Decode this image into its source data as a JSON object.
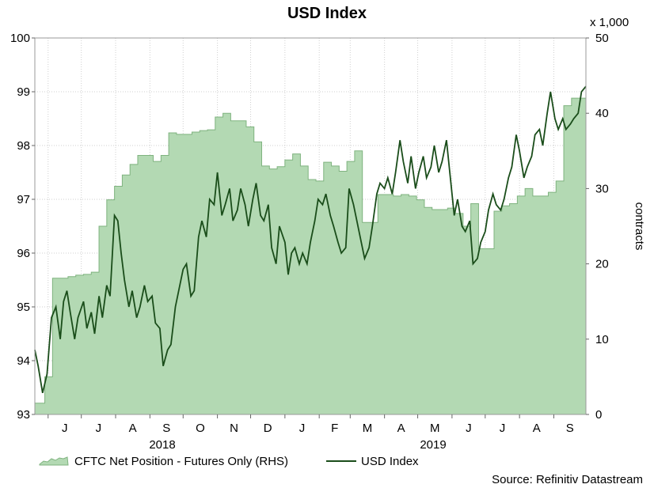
{
  "chart_data": {
    "type": "line",
    "title": "USD Index",
    "right_axis_multiplier": "x 1,000",
    "right_axis_label": "contracts",
    "source": "Source: Refinitiv Datastream",
    "x_start": "2018-05-20",
    "x_end": "2019-09-30",
    "month_labels": [
      "J",
      "J",
      "A",
      "S",
      "O",
      "N",
      "D",
      "J",
      "F",
      "M",
      "A",
      "M",
      "J",
      "J",
      "A",
      "S"
    ],
    "year_labels": [
      "2018",
      "2019"
    ],
    "y_left": {
      "min": 93,
      "max": 100,
      "ticks": [
        "93",
        "94",
        "95",
        "96",
        "97",
        "98",
        "99",
        "100"
      ]
    },
    "y_right": {
      "min": 0,
      "max": 50,
      "ticks": [
        "0",
        "10",
        "20",
        "30",
        "40",
        "50"
      ]
    },
    "grid": true,
    "legend_position": "bottom-left",
    "series": [
      {
        "name": "CFTC Net Position - Futures Only (RHS)",
        "type": "area",
        "axis": "right",
        "color": "#b3d9b3",
        "edge_color": "#7fb37f",
        "points": [
          [
            "2018-05-20",
            1.5
          ],
          [
            "2018-05-29",
            5.0
          ],
          [
            "2018-06-05",
            18.1
          ],
          [
            "2018-06-19",
            18.3
          ],
          [
            "2018-06-26",
            18.5
          ],
          [
            "2018-07-03",
            18.6
          ],
          [
            "2018-07-10",
            18.9
          ],
          [
            "2018-07-17",
            25.0
          ],
          [
            "2018-07-24",
            28.5
          ],
          [
            "2018-07-31",
            30.3
          ],
          [
            "2018-08-07",
            31.8
          ],
          [
            "2018-08-14",
            33.2
          ],
          [
            "2018-08-21",
            34.4
          ],
          [
            "2018-08-28",
            34.4
          ],
          [
            "2018-09-04",
            33.6
          ],
          [
            "2018-09-11",
            34.4
          ],
          [
            "2018-09-18",
            37.4
          ],
          [
            "2018-09-25",
            37.2
          ],
          [
            "2018-10-02",
            37.2
          ],
          [
            "2018-10-09",
            37.5
          ],
          [
            "2018-10-16",
            37.7
          ],
          [
            "2018-10-23",
            37.8
          ],
          [
            "2018-10-30",
            39.5
          ],
          [
            "2018-11-06",
            40.0
          ],
          [
            "2018-11-13",
            39.0
          ],
          [
            "2018-11-20",
            39.0
          ],
          [
            "2018-11-27",
            38.2
          ],
          [
            "2018-12-04",
            36.2
          ],
          [
            "2018-12-11",
            33.0
          ],
          [
            "2018-12-18",
            32.6
          ],
          [
            "2018-12-25",
            32.9
          ],
          [
            "2019-01-01",
            33.8
          ],
          [
            "2019-01-08",
            34.6
          ],
          [
            "2019-01-15",
            33.0
          ],
          [
            "2019-01-22",
            31.2
          ],
          [
            "2019-01-29",
            31.0
          ],
          [
            "2019-02-05",
            33.5
          ],
          [
            "2019-02-12",
            33.0
          ],
          [
            "2019-02-19",
            32.3
          ],
          [
            "2019-02-26",
            33.6
          ],
          [
            "2019-03-05",
            35.0
          ],
          [
            "2019-03-12",
            25.5
          ],
          [
            "2019-03-19",
            25.5
          ],
          [
            "2019-03-26",
            29.2
          ],
          [
            "2019-04-02",
            29.2
          ],
          [
            "2019-04-09",
            29.0
          ],
          [
            "2019-04-16",
            29.2
          ],
          [
            "2019-04-23",
            29.0
          ],
          [
            "2019-04-30",
            28.5
          ],
          [
            "2019-05-07",
            27.5
          ],
          [
            "2019-05-14",
            27.2
          ],
          [
            "2019-05-21",
            27.2
          ],
          [
            "2019-05-28",
            27.4
          ],
          [
            "2019-06-04",
            26.7
          ],
          [
            "2019-06-11",
            25.0
          ],
          [
            "2019-06-18",
            28.0
          ],
          [
            "2019-06-25",
            22.0
          ],
          [
            "2019-07-02",
            22.0
          ],
          [
            "2019-07-09",
            27.0
          ],
          [
            "2019-07-16",
            27.7
          ],
          [
            "2019-07-23",
            28.0
          ],
          [
            "2019-07-30",
            29.0
          ],
          [
            "2019-08-06",
            30.0
          ],
          [
            "2019-08-13",
            29.0
          ],
          [
            "2019-08-20",
            29.0
          ],
          [
            "2019-08-27",
            29.5
          ],
          [
            "2019-09-03",
            31.0
          ],
          [
            "2019-09-10",
            41.0
          ],
          [
            "2019-09-17",
            42.0
          ],
          [
            "2019-09-24",
            42.0
          ],
          [
            "2019-09-30",
            42.0
          ]
        ]
      },
      {
        "name": "USD Index",
        "type": "line",
        "axis": "left",
        "color": "#1a4d1a",
        "points": [
          [
            "2018-05-20",
            94.2
          ],
          [
            "2018-05-23",
            93.9
          ],
          [
            "2018-05-27",
            93.4
          ],
          [
            "2018-05-31",
            93.75
          ],
          [
            "2018-06-04",
            94.8
          ],
          [
            "2018-06-08",
            95.0
          ],
          [
            "2018-06-12",
            94.4
          ],
          [
            "2018-06-15",
            95.1
          ],
          [
            "2018-06-18",
            95.3
          ],
          [
            "2018-06-21",
            94.9
          ],
          [
            "2018-06-25",
            94.4
          ],
          [
            "2018-06-28",
            94.8
          ],
          [
            "2018-07-03",
            95.1
          ],
          [
            "2018-07-06",
            94.6
          ],
          [
            "2018-07-10",
            94.9
          ],
          [
            "2018-07-13",
            94.5
          ],
          [
            "2018-07-17",
            95.2
          ],
          [
            "2018-07-20",
            94.8
          ],
          [
            "2018-07-24",
            95.4
          ],
          [
            "2018-07-27",
            95.2
          ],
          [
            "2018-07-31",
            96.7
          ],
          [
            "2018-08-03",
            96.6
          ],
          [
            "2018-08-06",
            96.0
          ],
          [
            "2018-08-09",
            95.5
          ],
          [
            "2018-08-13",
            95.0
          ],
          [
            "2018-08-16",
            95.3
          ],
          [
            "2018-08-20",
            94.8
          ],
          [
            "2018-08-23",
            95.0
          ],
          [
            "2018-08-27",
            95.4
          ],
          [
            "2018-08-30",
            95.1
          ],
          [
            "2018-09-03",
            95.2
          ],
          [
            "2018-09-06",
            94.7
          ],
          [
            "2018-09-10",
            94.6
          ],
          [
            "2018-09-13",
            93.9
          ],
          [
            "2018-09-17",
            94.2
          ],
          [
            "2018-09-20",
            94.3
          ],
          [
            "2018-09-24",
            95.0
          ],
          [
            "2018-09-27",
            95.3
          ],
          [
            "2018-10-01",
            95.7
          ],
          [
            "2018-10-04",
            95.8
          ],
          [
            "2018-10-08",
            95.2
          ],
          [
            "2018-10-11",
            95.3
          ],
          [
            "2018-10-15",
            96.3
          ],
          [
            "2018-10-18",
            96.6
          ],
          [
            "2018-10-22",
            96.3
          ],
          [
            "2018-10-25",
            97.0
          ],
          [
            "2018-10-29",
            96.9
          ],
          [
            "2018-11-01",
            97.5
          ],
          [
            "2018-11-05",
            96.7
          ],
          [
            "2018-11-08",
            96.9
          ],
          [
            "2018-11-12",
            97.2
          ],
          [
            "2018-11-15",
            96.6
          ],
          [
            "2018-11-19",
            96.8
          ],
          [
            "2018-11-22",
            97.2
          ],
          [
            "2018-11-26",
            96.9
          ],
          [
            "2018-11-29",
            96.5
          ],
          [
            "2018-12-03",
            97.0
          ],
          [
            "2018-12-06",
            97.3
          ],
          [
            "2018-12-10",
            96.7
          ],
          [
            "2018-12-13",
            96.6
          ],
          [
            "2018-12-17",
            96.9
          ],
          [
            "2018-12-20",
            96.1
          ],
          [
            "2018-12-24",
            95.8
          ],
          [
            "2018-12-27",
            96.5
          ],
          [
            "2019-01-01",
            96.2
          ],
          [
            "2019-01-04",
            95.6
          ],
          [
            "2019-01-07",
            96.0
          ],
          [
            "2019-01-10",
            96.1
          ],
          [
            "2019-01-14",
            95.8
          ],
          [
            "2019-01-17",
            96.0
          ],
          [
            "2019-01-21",
            95.8
          ],
          [
            "2019-01-24",
            96.2
          ],
          [
            "2019-01-28",
            96.6
          ],
          [
            "2019-01-31",
            97.0
          ],
          [
            "2019-02-04",
            96.9
          ],
          [
            "2019-02-07",
            97.1
          ],
          [
            "2019-02-11",
            96.7
          ],
          [
            "2019-02-14",
            96.5
          ],
          [
            "2019-02-18",
            96.2
          ],
          [
            "2019-02-21",
            96.0
          ],
          [
            "2019-02-25",
            96.1
          ],
          [
            "2019-02-28",
            97.2
          ],
          [
            "2019-03-04",
            96.9
          ],
          [
            "2019-03-07",
            96.6
          ],
          [
            "2019-03-11",
            96.2
          ],
          [
            "2019-03-14",
            95.9
          ],
          [
            "2019-03-18",
            96.1
          ],
          [
            "2019-03-21",
            96.5
          ],
          [
            "2019-03-25",
            97.1
          ],
          [
            "2019-03-28",
            97.3
          ],
          [
            "2019-04-01",
            97.2
          ],
          [
            "2019-04-04",
            97.4
          ],
          [
            "2019-04-08",
            97.1
          ],
          [
            "2019-04-11",
            97.5
          ],
          [
            "2019-04-15",
            98.1
          ],
          [
            "2019-04-18",
            97.7
          ],
          [
            "2019-04-22",
            97.3
          ],
          [
            "2019-04-25",
            97.8
          ],
          [
            "2019-04-29",
            97.2
          ],
          [
            "2019-05-02",
            97.5
          ],
          [
            "2019-05-06",
            97.8
          ],
          [
            "2019-05-09",
            97.4
          ],
          [
            "2019-05-13",
            97.6
          ],
          [
            "2019-05-16",
            98.0
          ],
          [
            "2019-05-20",
            97.5
          ],
          [
            "2019-05-23",
            97.7
          ],
          [
            "2019-05-27",
            98.1
          ],
          [
            "2019-05-30",
            97.5
          ],
          [
            "2019-06-03",
            96.7
          ],
          [
            "2019-06-06",
            97.0
          ],
          [
            "2019-06-10",
            96.5
          ],
          [
            "2019-06-13",
            96.4
          ],
          [
            "2019-06-17",
            96.6
          ],
          [
            "2019-06-20",
            95.8
          ],
          [
            "2019-06-24",
            95.9
          ],
          [
            "2019-06-27",
            96.2
          ],
          [
            "2019-07-01",
            96.4
          ],
          [
            "2019-07-04",
            96.8
          ],
          [
            "2019-07-08",
            97.1
          ],
          [
            "2019-07-11",
            96.9
          ],
          [
            "2019-07-15",
            96.8
          ],
          [
            "2019-07-18",
            97.0
          ],
          [
            "2019-07-22",
            97.4
          ],
          [
            "2019-07-25",
            97.6
          ],
          [
            "2019-07-29",
            98.2
          ],
          [
            "2019-08-01",
            97.9
          ],
          [
            "2019-08-05",
            97.4
          ],
          [
            "2019-08-08",
            97.6
          ],
          [
            "2019-08-12",
            97.8
          ],
          [
            "2019-08-15",
            98.2
          ],
          [
            "2019-08-19",
            98.3
          ],
          [
            "2019-08-22",
            98.0
          ],
          [
            "2019-08-26",
            98.6
          ],
          [
            "2019-08-29",
            99.0
          ],
          [
            "2019-09-02",
            98.5
          ],
          [
            "2019-09-05",
            98.3
          ],
          [
            "2019-09-09",
            98.5
          ],
          [
            "2019-09-12",
            98.3
          ],
          [
            "2019-09-16",
            98.4
          ],
          [
            "2019-09-19",
            98.5
          ],
          [
            "2019-09-23",
            98.6
          ],
          [
            "2019-09-26",
            99.0
          ],
          [
            "2019-09-30",
            99.1
          ]
        ]
      }
    ]
  }
}
